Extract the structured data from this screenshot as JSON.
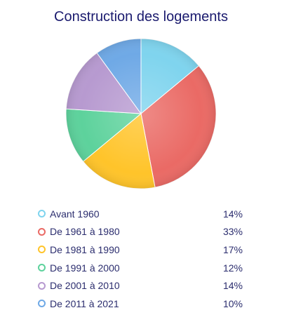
{
  "chart_data": {
    "type": "pie",
    "title": "Construction des logements",
    "categories": [
      "Avant 1960",
      "De 1961 à 1980",
      "De 1981 à 1990",
      "De 1991 à 2000",
      "De 2001 à 2010",
      "De 2011 à 2021"
    ],
    "values": [
      14,
      33,
      17,
      12,
      14,
      10
    ],
    "value_labels": [
      "14%",
      "33%",
      "17%",
      "12%",
      "14%",
      "10%"
    ],
    "colors": [
      "#7fd4ee",
      "#ea6a65",
      "#ffc42a",
      "#5dd29c",
      "#b79ad0",
      "#6fa9e6"
    ],
    "legend_position": "bottom"
  }
}
